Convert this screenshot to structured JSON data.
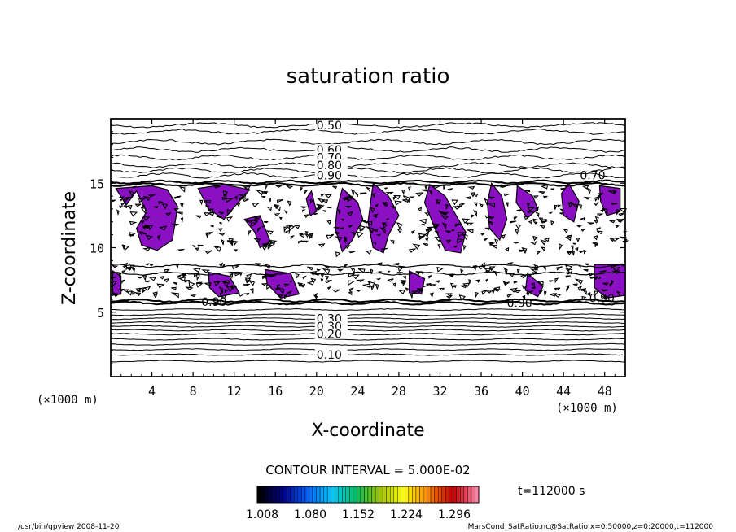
{
  "chart_data": {
    "type": "contour",
    "title": "saturation ratio",
    "xlabel": "X-coordinate",
    "ylabel": "Z-coordinate",
    "x_unit_left": "(×1000 m)",
    "x_unit_right": "(×1000 m)",
    "xlim": [
      0,
      50
    ],
    "ylim": [
      0,
      20
    ],
    "x_ticks": [
      4,
      8,
      12,
      16,
      20,
      24,
      28,
      32,
      36,
      40,
      44,
      48
    ],
    "y_ticks": [
      5,
      10,
      15
    ],
    "upper_contours": [
      {
        "z": 19.5,
        "label": "0.50"
      },
      {
        "z": 19.0
      },
      {
        "z": 18.2
      },
      {
        "z": 17.6,
        "label": "0.60"
      },
      {
        "z": 17.0,
        "label": "0.70"
      },
      {
        "z": 16.4,
        "label": "0.80"
      },
      {
        "z": 16.0
      },
      {
        "z": 15.6,
        "label": "0.90"
      }
    ],
    "lower_contours": [
      {
        "z": 5.2
      },
      {
        "z": 4.8
      },
      {
        "z": 4.5,
        "label": "0.30"
      },
      {
        "z": 4.2
      },
      {
        "z": 3.9,
        "label": "0.30"
      },
      {
        "z": 3.6
      },
      {
        "z": 3.3,
        "label": "0.20"
      },
      {
        "z": 2.9
      },
      {
        "z": 2.5
      },
      {
        "z": 2.1
      },
      {
        "z": 1.7,
        "label": "0.10"
      },
      {
        "z": 1.2
      }
    ],
    "extra_labels": [
      {
        "x": 45.6,
        "z": 15.6,
        "text": "0.70"
      },
      {
        "x": 38.5,
        "z": 5.7,
        "text": "0.90"
      },
      {
        "x": 46.5,
        "z": 6.1,
        "text": "0.90"
      },
      {
        "x": 8.8,
        "z": 5.8,
        "text": "0.90"
      }
    ],
    "supersaturated_regions": [
      {
        "cells": [
          [
            0.5,
            14.6
          ],
          [
            1.5,
            13.3
          ],
          [
            2.5,
            14.4
          ],
          [
            3.5,
            12.8
          ],
          [
            2.5,
            11.5
          ],
          [
            3,
            10.2
          ],
          [
            4.5,
            9.8
          ],
          [
            6,
            10.6
          ],
          [
            6.5,
            13.2
          ],
          [
            5.5,
            14.5
          ],
          [
            4,
            14.8
          ]
        ]
      },
      {
        "cells": [
          [
            8.5,
            14.6
          ],
          [
            9.5,
            13.0
          ],
          [
            11,
            12.2
          ],
          [
            12.5,
            13.6
          ],
          [
            13.5,
            14.5
          ],
          [
            11,
            14.9
          ]
        ]
      },
      {
        "cells": [
          [
            13,
            12.2
          ],
          [
            14,
            11.2
          ],
          [
            14.5,
            10.0
          ],
          [
            15.5,
            10.5
          ],
          [
            14.5,
            12.5
          ]
        ]
      },
      {
        "cells": [
          [
            0.2,
            8.2
          ],
          [
            1,
            7.8
          ],
          [
            1,
            6.4
          ],
          [
            0.2,
            6.3
          ]
        ]
      },
      {
        "cells": [
          [
            9.5,
            8.1
          ],
          [
            11.5,
            7.8
          ],
          [
            12.5,
            6.5
          ],
          [
            10.5,
            6.2
          ],
          [
            9.6,
            6.9
          ]
        ]
      },
      {
        "cells": [
          [
            15,
            8.3
          ],
          [
            17.5,
            8.0
          ],
          [
            18.3,
            6.4
          ],
          [
            16.5,
            6.1
          ],
          [
            15.2,
            7.2
          ]
        ]
      },
      {
        "cells": [
          [
            25.5,
            15.0
          ],
          [
            27,
            14.0
          ],
          [
            28,
            12.5
          ],
          [
            27,
            11.0
          ],
          [
            26.5,
            9.6
          ],
          [
            25.5,
            10.0
          ],
          [
            25,
            12.0
          ]
        ]
      },
      {
        "cells": [
          [
            31,
            14.9
          ],
          [
            32.5,
            14.0
          ],
          [
            33.5,
            12.6
          ],
          [
            34.5,
            11.2
          ],
          [
            34,
            9.6
          ],
          [
            32.5,
            9.8
          ],
          [
            31.5,
            11.5
          ],
          [
            30.5,
            13.5
          ]
        ]
      },
      {
        "cells": [
          [
            37,
            15.0
          ],
          [
            38,
            14.0
          ],
          [
            38.5,
            12.2
          ],
          [
            37.8,
            10.6
          ],
          [
            36.8,
            11.5
          ],
          [
            36.6,
            13.5
          ]
        ]
      },
      {
        "cells": [
          [
            22.5,
            14.6
          ],
          [
            24,
            13.5
          ],
          [
            24.5,
            12.2
          ],
          [
            23.4,
            10.5
          ],
          [
            22.5,
            9.7
          ],
          [
            21.8,
            11.5
          ],
          [
            22,
            13.0
          ]
        ]
      },
      {
        "cells": [
          [
            39.5,
            14.8
          ],
          [
            41,
            14.0
          ],
          [
            41.5,
            13.0
          ],
          [
            40.5,
            12.3
          ],
          [
            39.4,
            13.5
          ]
        ]
      },
      {
        "cells": [
          [
            44.5,
            15.0
          ],
          [
            45.5,
            13.6
          ],
          [
            45,
            12.0
          ],
          [
            44,
            12.5
          ],
          [
            43.8,
            14.2
          ]
        ]
      },
      {
        "cells": [
          [
            47.5,
            14.8
          ],
          [
            49.5,
            14.6
          ],
          [
            49.5,
            12.8
          ],
          [
            48.2,
            12.5
          ],
          [
            47.6,
            13.6
          ]
        ]
      },
      {
        "cells": [
          [
            29,
            8.2
          ],
          [
            30.5,
            7.6
          ],
          [
            30.2,
            6.4
          ],
          [
            29,
            6.5
          ]
        ]
      },
      {
        "cells": [
          [
            40.5,
            8.0
          ],
          [
            42,
            7.0
          ],
          [
            41.5,
            6.2
          ],
          [
            40.3,
            6.7
          ]
        ]
      },
      {
        "cells": [
          [
            47,
            8.7
          ],
          [
            50,
            8.7
          ],
          [
            50,
            6.3
          ],
          [
            48.2,
            6.1
          ],
          [
            47,
            6.9
          ]
        ]
      },
      {
        "cells": [
          [
            19.5,
            14.4
          ],
          [
            20,
            12.8
          ],
          [
            19.4,
            12.5
          ],
          [
            19,
            13.8
          ]
        ]
      }
    ],
    "contour_interval_label": "CONTOUR INTERVAL = 5.000E-02",
    "colorbar_ticks": [
      "1.008",
      "1.080",
      "1.152",
      "1.224",
      "1.296"
    ],
    "time_label": "t=112000 s",
    "colors": {
      "fill": "#8b10c4",
      "line": "#000000",
      "colorbar": [
        "#000000",
        "#00008b",
        "#0060ff",
        "#00c8ff",
        "#00c060",
        "#a0c000",
        "#ffff00",
        "#ff8000",
        "#c00000",
        "#ff80a0"
      ]
    }
  },
  "footer": {
    "left": "/usr/bin/gpview   2008-11-20",
    "right": "MarsCond_SatRatio.nc@SatRatio,x=0:50000,z=0:20000,t=112000"
  }
}
